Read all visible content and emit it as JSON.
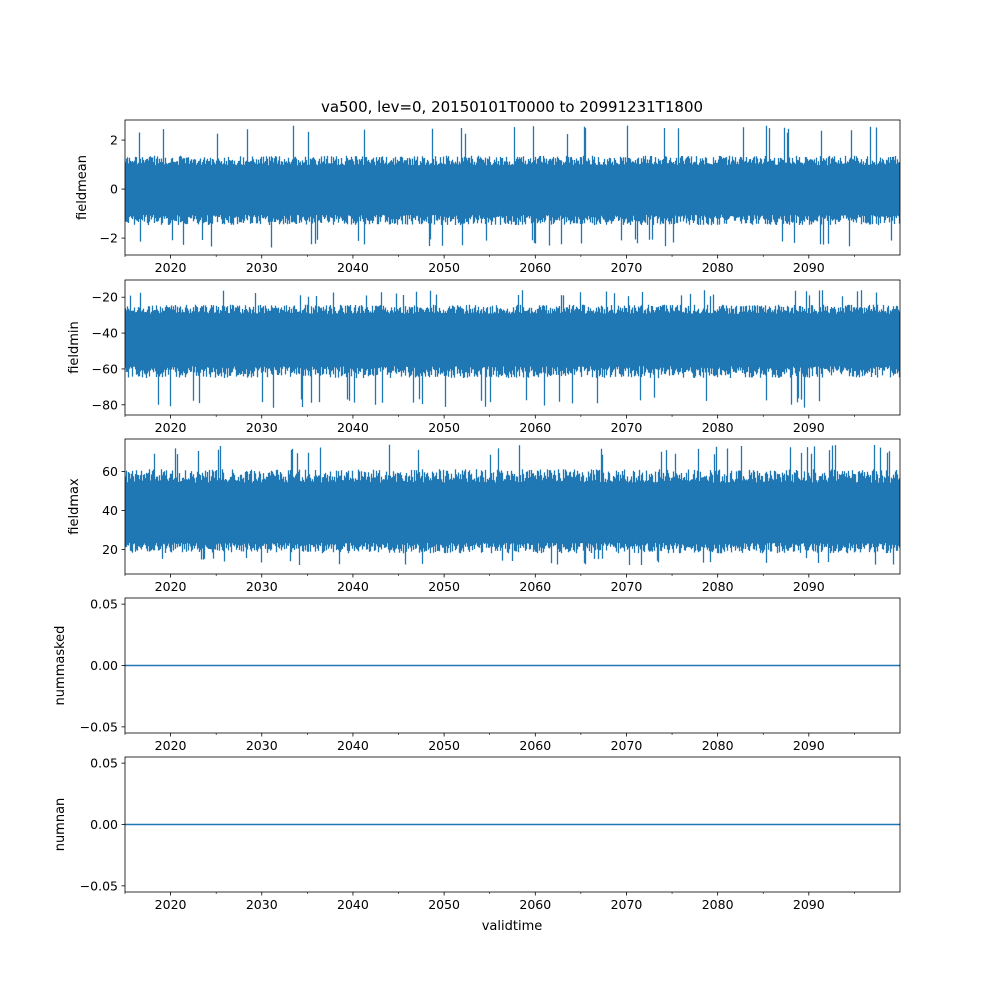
{
  "chart_data": {
    "type": "line",
    "title": "va500, lev=0, 20150101T0000 to 20991231T1800",
    "xlabel": "validtime",
    "xlim": [
      2015.0,
      2100.0
    ],
    "xticks": [
      "2020",
      "2030",
      "2040",
      "2050",
      "2060",
      "2070",
      "2080",
      "2090"
    ],
    "xtick_values": [
      2020,
      2030,
      2040,
      2050,
      2060,
      2070,
      2080,
      2090
    ],
    "grid": false,
    "line_color": "#1f77b4",
    "panels": [
      {
        "ylabel": "fieldmean",
        "ylim": [
          -2.69,
          2.82
        ],
        "yticks": [
          "−2",
          "0",
          "2"
        ],
        "ytick_values": [
          -2,
          0,
          2
        ],
        "typical_range": [
          -1.4,
          1.3
        ],
        "extreme_min": -2.4,
        "extreme_max": 2.6,
        "mean": 0.0
      },
      {
        "ylabel": "fieldmin",
        "ylim": [
          -85.7,
          -10.4
        ],
        "yticks": [
          "−80",
          "−60",
          "−40",
          "−20"
        ],
        "ytick_values": [
          -80,
          -60,
          -40,
          -20
        ],
        "typical_range": [
          -64,
          -25
        ],
        "extreme_min": -82,
        "extreme_max": -16,
        "mean": -42
      },
      {
        "ylabel": "fieldmax",
        "ylim": [
          7.5,
          76.6
        ],
        "yticks": [
          "20",
          "40",
          "60"
        ],
        "ytick_values": [
          20,
          40,
          60
        ],
        "typical_range": [
          19,
          60
        ],
        "extreme_min": 12,
        "extreme_max": 74,
        "mean": 37
      },
      {
        "ylabel": "nummasked",
        "ylim": [
          -0.055,
          0.055
        ],
        "yticks": [
          "−0.05",
          "0.00",
          "0.05"
        ],
        "ytick_values": [
          -0.05,
          0,
          0.05
        ],
        "constant": 0.0
      },
      {
        "ylabel": "numnan",
        "ylim": [
          -0.055,
          0.055
        ],
        "yticks": [
          "−0.05",
          "0.00",
          "0.05"
        ],
        "ytick_values": [
          -0.05,
          0,
          0.05
        ],
        "constant": 0.0
      }
    ]
  }
}
